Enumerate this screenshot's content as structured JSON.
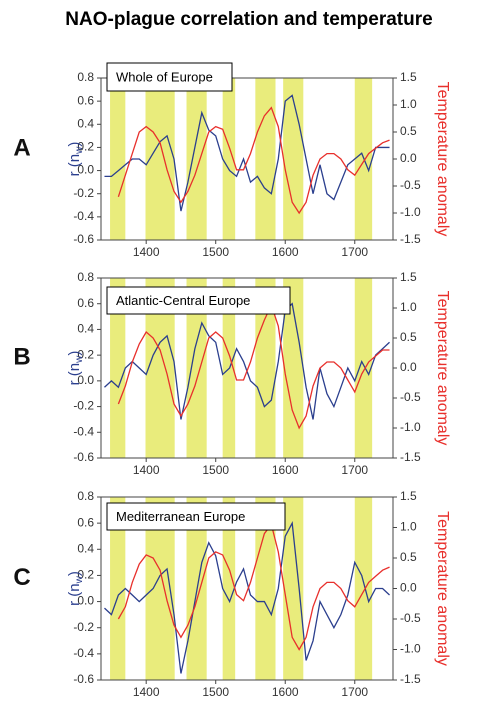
{
  "title": "NAO-plague correlation and temperature",
  "chart_data": [
    {
      "type": "line",
      "panel": "A",
      "inset_label": "Whole of Europe",
      "y_label": {
        "main": "r (n",
        "sub": "w",
        "close": ")"
      },
      "y2_label": "Temperature anomaly",
      "xlim": [
        1335,
        1755
      ],
      "xticks": [
        1400,
        1500,
        1600,
        1700
      ],
      "ylim": [
        -0.6,
        0.8
      ],
      "yticks": [
        -0.6,
        -0.4,
        -0.2,
        {
          "value": 0,
          "label": "0.0"
        },
        0.2,
        0.4,
        0.6,
        0.8
      ],
      "y2lim": [
        -1.5,
        1.5
      ],
      "y2ticks": [
        -1.5,
        {
          "value": -1,
          "label": "-1.0"
        },
        -0.5,
        {
          "value": 0,
          "label": "0.0"
        },
        0.5,
        {
          "value": 1,
          "label": "1.0"
        },
        1.5
      ],
      "plague_periods": [
        [
          1348,
          1370
        ],
        [
          1399,
          1441
        ],
        [
          1458,
          1487
        ],
        [
          1510,
          1528
        ],
        [
          1557,
          1586
        ],
        [
          1597,
          1626
        ],
        [
          1700,
          1725
        ]
      ],
      "x": [
        1340,
        1350,
        1360,
        1370,
        1380,
        1390,
        1400,
        1410,
        1420,
        1430,
        1440,
        1450,
        1460,
        1470,
        1480,
        1490,
        1500,
        1510,
        1520,
        1530,
        1540,
        1550,
        1560,
        1570,
        1580,
        1590,
        1600,
        1610,
        1620,
        1630,
        1640,
        1650,
        1660,
        1670,
        1680,
        1690,
        1700,
        1710,
        1720,
        1730,
        1740,
        1750
      ],
      "series": [
        {
          "name": "r",
          "color": "#2b3f8e",
          "values": [
            -0.05,
            -0.05,
            0.0,
            0.05,
            0.1,
            0.1,
            0.05,
            0.15,
            0.25,
            0.3,
            0.1,
            -0.35,
            -0.1,
            0.2,
            0.5,
            0.35,
            0.3,
            0.1,
            0.0,
            -0.05,
            0.1,
            -0.1,
            -0.05,
            -0.15,
            -0.2,
            0.1,
            0.6,
            0.65,
            0.4,
            0.1,
            -0.2,
            0.05,
            -0.2,
            -0.25,
            -0.1,
            0.05,
            0.1,
            0.15,
            0.0,
            0.2,
            0.2,
            0.2
          ]
        },
        {
          "name": "Temperature anomaly",
          "color": "#e8302c",
          "axis": "y2",
          "values": [
            null,
            null,
            -0.7,
            -0.3,
            0.1,
            0.5,
            0.6,
            0.5,
            0.3,
            -0.2,
            -0.6,
            -0.8,
            -0.6,
            -0.3,
            0.1,
            0.5,
            0.6,
            0.55,
            0.2,
            -0.2,
            -0.2,
            0.1,
            0.5,
            0.8,
            0.95,
            0.6,
            -0.2,
            -0.8,
            -1.0,
            -0.8,
            -0.3,
            0.0,
            0.1,
            0.1,
            0.0,
            -0.2,
            -0.3,
            -0.1,
            0.1,
            0.2,
            0.3,
            0.35
          ]
        }
      ]
    },
    {
      "type": "line",
      "panel": "B",
      "inset_label": "Atlantic-Central Europe",
      "y_label": {
        "main": "r (n",
        "sub": "w",
        "close": ")"
      },
      "y2_label": "Temperature anomaly",
      "xlim": [
        1335,
        1755
      ],
      "xticks": [
        1400,
        1500,
        1600,
        1700
      ],
      "ylim": [
        -0.6,
        0.8
      ],
      "yticks": [
        -0.6,
        -0.4,
        -0.2,
        {
          "value": 0,
          "label": "0.0"
        },
        0.2,
        0.4,
        0.6,
        0.8
      ],
      "y2lim": [
        -1.5,
        1.5
      ],
      "y2ticks": [
        -1.5,
        {
          "value": -1,
          "label": "-1.0"
        },
        -0.5,
        {
          "value": 0,
          "label": "0.0"
        },
        0.5,
        {
          "value": 1,
          "label": "1.0"
        },
        1.5
      ],
      "plague_periods": [
        [
          1348,
          1370
        ],
        [
          1399,
          1441
        ],
        [
          1458,
          1487
        ],
        [
          1510,
          1528
        ],
        [
          1557,
          1586
        ],
        [
          1597,
          1626
        ],
        [
          1700,
          1725
        ]
      ],
      "x": [
        1340,
        1350,
        1360,
        1370,
        1380,
        1390,
        1400,
        1410,
        1420,
        1430,
        1440,
        1450,
        1460,
        1470,
        1480,
        1490,
        1500,
        1510,
        1520,
        1530,
        1540,
        1550,
        1560,
        1570,
        1580,
        1590,
        1600,
        1610,
        1620,
        1630,
        1640,
        1650,
        1660,
        1670,
        1680,
        1690,
        1700,
        1710,
        1720,
        1730,
        1740,
        1750
      ],
      "series": [
        {
          "name": "r",
          "color": "#2b3f8e",
          "values": [
            -0.05,
            0.0,
            -0.05,
            0.1,
            0.15,
            0.1,
            0.05,
            0.2,
            0.3,
            0.35,
            0.15,
            -0.3,
            -0.05,
            0.25,
            0.45,
            0.35,
            0.3,
            0.05,
            0.1,
            0.25,
            0.15,
            0.0,
            -0.05,
            -0.2,
            -0.15,
            0.15,
            0.55,
            0.6,
            0.3,
            -0.05,
            -0.3,
            0.1,
            -0.1,
            -0.2,
            -0.05,
            0.1,
            0.0,
            0.15,
            0.05,
            0.2,
            0.25,
            0.3
          ]
        },
        {
          "name": "Temperature anomaly",
          "color": "#e8302c",
          "axis": "y2",
          "values": [
            null,
            null,
            -0.6,
            -0.3,
            0.1,
            0.4,
            0.6,
            0.5,
            0.3,
            -0.1,
            -0.6,
            -0.8,
            -0.6,
            -0.3,
            0.1,
            0.5,
            0.6,
            0.5,
            0.2,
            -0.2,
            -0.2,
            0.1,
            0.5,
            0.8,
            1.05,
            0.7,
            -0.1,
            -0.7,
            -1.0,
            -0.8,
            -0.3,
            0.0,
            0.1,
            0.1,
            0.0,
            -0.2,
            -0.4,
            -0.1,
            0.1,
            0.2,
            0.3,
            0.3
          ]
        }
      ]
    },
    {
      "type": "line",
      "panel": "C",
      "inset_label": "Mediterranean Europe",
      "y_label": {
        "main": "r (n",
        "sub": "w",
        "close": ")"
      },
      "y2_label": "Temperature anomaly",
      "xlim": [
        1335,
        1755
      ],
      "xticks": [
        1400,
        1500,
        1600,
        1700
      ],
      "ylim": [
        -0.6,
        0.8
      ],
      "yticks": [
        -0.6,
        -0.4,
        -0.2,
        {
          "value": 0,
          "label": "0.0"
        },
        0.2,
        0.4,
        0.6,
        0.8
      ],
      "y2lim": [
        -1.5,
        1.5
      ],
      "y2ticks": [
        -1.5,
        {
          "value": -1,
          "label": "-1.0"
        },
        -0.5,
        {
          "value": 0,
          "label": "0.0"
        },
        0.5,
        {
          "value": 1,
          "label": "1.0"
        },
        1.5
      ],
      "plague_periods": [
        [
          1348,
          1370
        ],
        [
          1399,
          1441
        ],
        [
          1458,
          1487
        ],
        [
          1510,
          1528
        ],
        [
          1557,
          1586
        ],
        [
          1597,
          1626
        ],
        [
          1700,
          1725
        ]
      ],
      "x": [
        1340,
        1350,
        1360,
        1370,
        1380,
        1390,
        1400,
        1410,
        1420,
        1430,
        1440,
        1450,
        1460,
        1470,
        1480,
        1490,
        1500,
        1510,
        1520,
        1530,
        1540,
        1550,
        1560,
        1570,
        1580,
        1590,
        1600,
        1610,
        1620,
        1630,
        1640,
        1650,
        1660,
        1670,
        1680,
        1690,
        1700,
        1710,
        1720,
        1730,
        1740,
        1750
      ],
      "series": [
        {
          "name": "r",
          "color": "#2b3f8e",
          "values": [
            -0.05,
            -0.1,
            0.05,
            0.1,
            0.05,
            0.0,
            0.05,
            0.1,
            0.2,
            0.25,
            -0.1,
            -0.55,
            -0.3,
            0.0,
            0.3,
            0.45,
            0.35,
            0.1,
            0.0,
            0.15,
            0.25,
            0.05,
            0.0,
            0.0,
            -0.1,
            0.1,
            0.5,
            0.6,
            0.1,
            -0.45,
            -0.3,
            0.0,
            -0.1,
            -0.2,
            -0.1,
            0.05,
            0.3,
            0.2,
            0.0,
            0.1,
            0.1,
            0.05
          ]
        },
        {
          "name": "Temperature anomaly",
          "color": "#e8302c",
          "axis": "y2",
          "values": [
            null,
            null,
            -0.5,
            -0.3,
            0.1,
            0.4,
            0.55,
            0.5,
            0.3,
            -0.2,
            -0.6,
            -0.8,
            -0.6,
            -0.3,
            0.1,
            0.5,
            0.6,
            0.55,
            0.3,
            -0.1,
            -0.2,
            0.1,
            0.5,
            0.9,
            1.05,
            0.6,
            -0.1,
            -0.8,
            -1.0,
            -0.8,
            -0.3,
            0.0,
            0.1,
            0.1,
            0.0,
            -0.2,
            -0.3,
            -0.1,
            0.1,
            0.2,
            0.3,
            0.35
          ]
        }
      ]
    }
  ]
}
